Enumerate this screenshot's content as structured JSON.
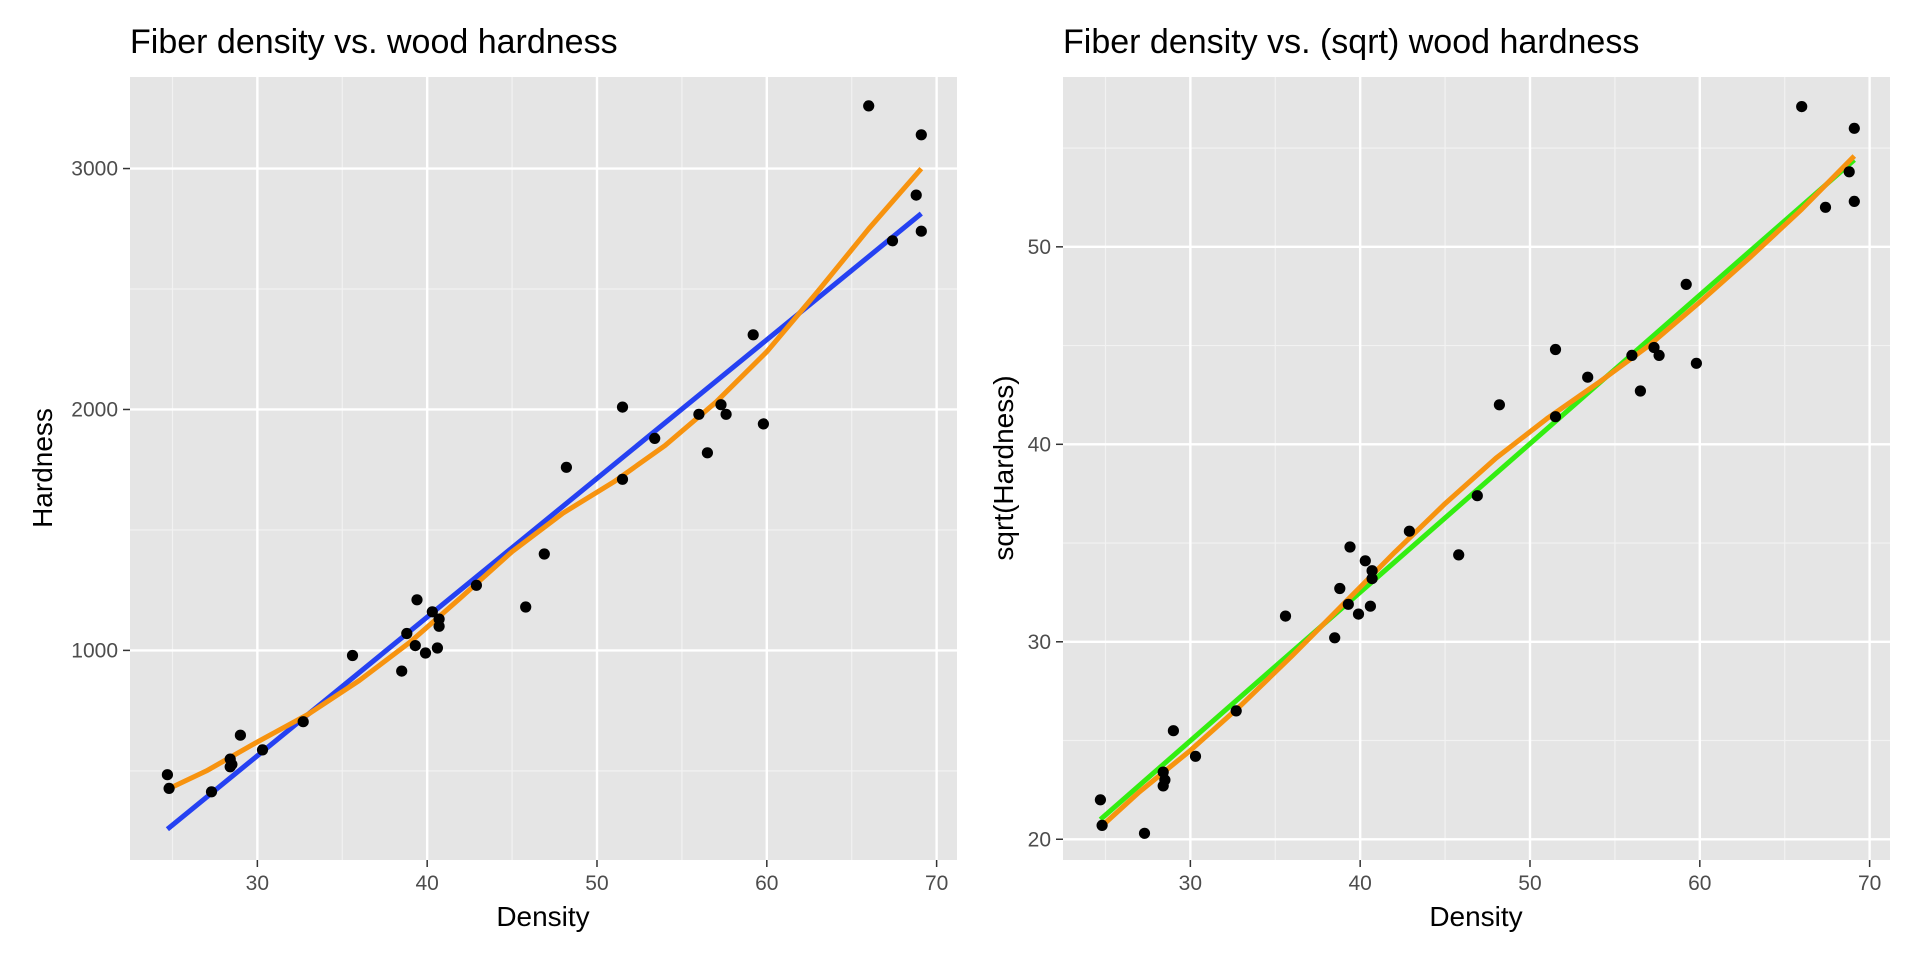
{
  "chart_data": [
    {
      "type": "scatter",
      "title": "Fiber density vs. wood hardness",
      "xlabel": "Density",
      "ylabel": "Hardness",
      "xlim": [
        22.5,
        71.2
      ],
      "ylim": [
        130,
        3380
      ],
      "x_ticks": [
        30,
        40,
        50,
        60,
        70
      ],
      "y_ticks": [
        1000,
        2000,
        3000
      ],
      "grid": true,
      "background": "#e5e5e5",
      "points": [
        [
          24.7,
          484
        ],
        [
          24.8,
          427
        ],
        [
          27.3,
          413
        ],
        [
          28.4,
          517
        ],
        [
          28.4,
          549
        ],
        [
          28.5,
          527
        ],
        [
          29.0,
          648
        ],
        [
          30.3,
          587
        ],
        [
          32.7,
          704
        ],
        [
          35.6,
          979
        ],
        [
          38.5,
          914
        ],
        [
          38.8,
          1070
        ],
        [
          39.3,
          1020
        ],
        [
          39.4,
          1210
        ],
        [
          39.9,
          989
        ],
        [
          40.3,
          1160
        ],
        [
          40.6,
          1010
        ],
        [
          40.7,
          1100
        ],
        [
          40.7,
          1130
        ],
        [
          42.9,
          1270
        ],
        [
          45.8,
          1180
        ],
        [
          46.9,
          1400
        ],
        [
          48.2,
          1760
        ],
        [
          51.5,
          1710
        ],
        [
          51.5,
          2010
        ],
        [
          53.4,
          1880
        ],
        [
          56.0,
          1980
        ],
        [
          56.5,
          1820
        ],
        [
          57.3,
          2020
        ],
        [
          57.6,
          1980
        ],
        [
          59.2,
          2310
        ],
        [
          59.8,
          1940
        ],
        [
          66.0,
          3260
        ],
        [
          67.4,
          2700
        ],
        [
          68.8,
          2890
        ],
        [
          69.1,
          2740
        ],
        [
          69.1,
          3140
        ]
      ],
      "series": [
        {
          "style": "linear-fit",
          "color": "#2541f2",
          "x": [
            24.7,
            69.1
          ],
          "y": [
            258,
            2813
          ]
        },
        {
          "style": "smooth-fit",
          "color": "#f7930f",
          "x": [
            24.7,
            27,
            30,
            33,
            36,
            39,
            42,
            45,
            48,
            51,
            54,
            57,
            60,
            63,
            66,
            69.1
          ],
          "y": [
            423,
            500,
            620,
            735,
            875,
            1035,
            1220,
            1410,
            1570,
            1700,
            1850,
            2030,
            2240,
            2490,
            2750,
            3000
          ]
        }
      ]
    },
    {
      "type": "scatter",
      "title": "Fiber density vs. (sqrt) wood hardness",
      "xlabel": "Density",
      "ylabel": "sqrt(Hardness)",
      "xlim": [
        22.5,
        71.2
      ],
      "ylim": [
        18.95,
        58.6
      ],
      "x_ticks": [
        30,
        40,
        50,
        60,
        70
      ],
      "y_ticks": [
        20,
        30,
        40,
        50
      ],
      "grid": true,
      "background": "#e5e5e5",
      "points": [
        [
          24.7,
          22.0
        ],
        [
          24.8,
          20.7
        ],
        [
          27.3,
          20.3
        ],
        [
          28.4,
          22.7
        ],
        [
          28.4,
          23.4
        ],
        [
          28.5,
          23.0
        ],
        [
          29.0,
          25.5
        ],
        [
          30.3,
          24.2
        ],
        [
          32.7,
          26.5
        ],
        [
          35.6,
          31.3
        ],
        [
          38.5,
          30.2
        ],
        [
          38.8,
          32.7
        ],
        [
          39.3,
          31.9
        ],
        [
          39.4,
          34.8
        ],
        [
          39.9,
          31.4
        ],
        [
          40.3,
          34.1
        ],
        [
          40.6,
          31.8
        ],
        [
          40.7,
          33.2
        ],
        [
          40.7,
          33.6
        ],
        [
          42.9,
          35.6
        ],
        [
          45.8,
          34.4
        ],
        [
          46.9,
          37.4
        ],
        [
          48.2,
          42.0
        ],
        [
          51.5,
          41.4
        ],
        [
          51.5,
          44.8
        ],
        [
          53.4,
          43.4
        ],
        [
          56.0,
          44.5
        ],
        [
          56.5,
          42.7
        ],
        [
          57.3,
          44.9
        ],
        [
          57.6,
          44.5
        ],
        [
          59.2,
          48.1
        ],
        [
          59.8,
          44.1
        ],
        [
          66.0,
          57.1
        ],
        [
          67.4,
          52.0
        ],
        [
          68.8,
          53.8
        ],
        [
          69.1,
          52.3
        ],
        [
          69.1,
          56.0
        ]
      ],
      "series": [
        {
          "style": "linear-fit",
          "color": "#33ee11",
          "x": [
            24.7,
            69.1
          ],
          "y": [
            21.0,
            54.4
          ]
        },
        {
          "style": "smooth-fit",
          "color": "#f7930f",
          "x": [
            24.7,
            27,
            30,
            33,
            36,
            39,
            42,
            45,
            48,
            51,
            54,
            57,
            60,
            63,
            66,
            69.1
          ],
          "y": [
            20.6,
            22.4,
            24.5,
            26.8,
            29.3,
            31.9,
            34.5,
            37.0,
            39.3,
            41.3,
            43.1,
            45.0,
            47.2,
            49.5,
            51.9,
            54.6
          ]
        }
      ]
    }
  ]
}
